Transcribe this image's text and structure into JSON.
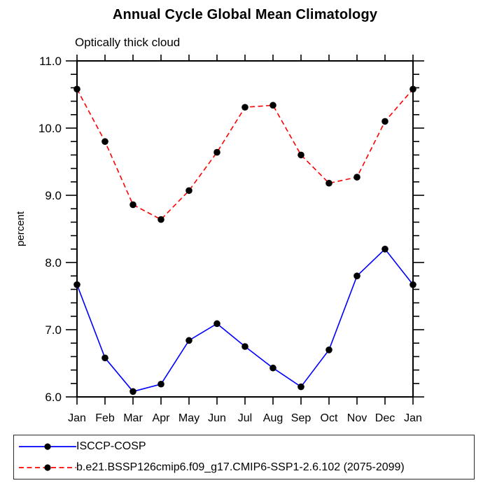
{
  "chart": {
    "title": "Annual Cycle Global Mean Climatology",
    "subtitle": "Optically thick cloud"
  },
  "chart_data": {
    "type": "line",
    "title": "Annual Cycle Global Mean Climatology",
    "subtitle": "Optically thick cloud",
    "ylabel": "percent",
    "xlabel": "",
    "categories": [
      "Jan",
      "Feb",
      "Mar",
      "Apr",
      "May",
      "Jun",
      "Jul",
      "Aug",
      "Sep",
      "Oct",
      "Nov",
      "Dec",
      "Jan"
    ],
    "ylim": [
      6.0,
      11.0
    ],
    "ytick_major": [
      6.0,
      7.0,
      8.0,
      9.0,
      10.0,
      11.0
    ],
    "ytick_minor_step": 0.2,
    "grid": false,
    "frame": "full-box-outward-ticks",
    "legend_position": "bottom-left-box",
    "marker": "filled-circle",
    "marker_color": "#000000",
    "series": [
      {
        "name": "ISCCP-COSP",
        "color": "#0000ff",
        "style": "solid",
        "values": [
          7.67,
          6.58,
          6.08,
          6.19,
          6.84,
          7.09,
          6.75,
          6.43,
          6.15,
          6.7,
          7.8,
          8.2,
          7.67
        ]
      },
      {
        "name": "b.e21.BSSP126cmip6.f09_g17.CMIP6-SSP1-2.6.102 (2075-2099)",
        "color": "#ff0000",
        "style": "dashed",
        "values": [
          10.58,
          9.8,
          8.86,
          8.64,
          9.07,
          9.64,
          10.31,
          10.34,
          9.6,
          9.18,
          9.27,
          10.1,
          10.58
        ]
      }
    ]
  }
}
